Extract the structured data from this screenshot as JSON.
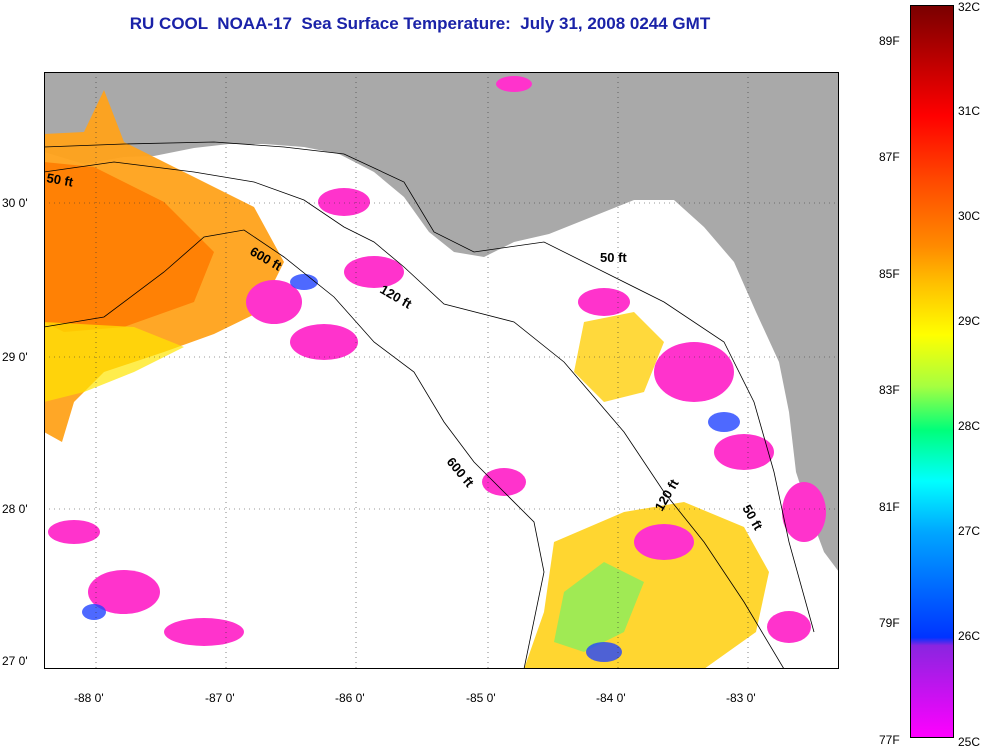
{
  "title": "RU COOL  NOAA-17  Sea Surface Temperature:  July 31, 2008 0244 GMT",
  "map": {
    "lat_labels": [
      "30 0'",
      "29 0'",
      "28 0'",
      "27 0'"
    ],
    "lon_labels": [
      "-88 0'",
      "-87 0'",
      "-86 0'",
      "-85 0'",
      "-84 0'",
      "-83 0'"
    ],
    "contour_labels": [
      "50 ft",
      "600 ft",
      "120 ft",
      "50 ft",
      "600 ft",
      "120 ft",
      "50 ft"
    ],
    "colors": {
      "land": "#a9a9a9",
      "cloud": "#ffffff",
      "warm": "#ff9900",
      "cool": "#ff33cc"
    }
  },
  "colorbar": {
    "celsius": [
      "32C",
      "31C",
      "30C",
      "29C",
      "28C",
      "27C",
      "26C",
      "25C"
    ],
    "fahrenheit": [
      "89F",
      "87F",
      "85F",
      "83F",
      "81F",
      "79F",
      "77F"
    ]
  }
}
